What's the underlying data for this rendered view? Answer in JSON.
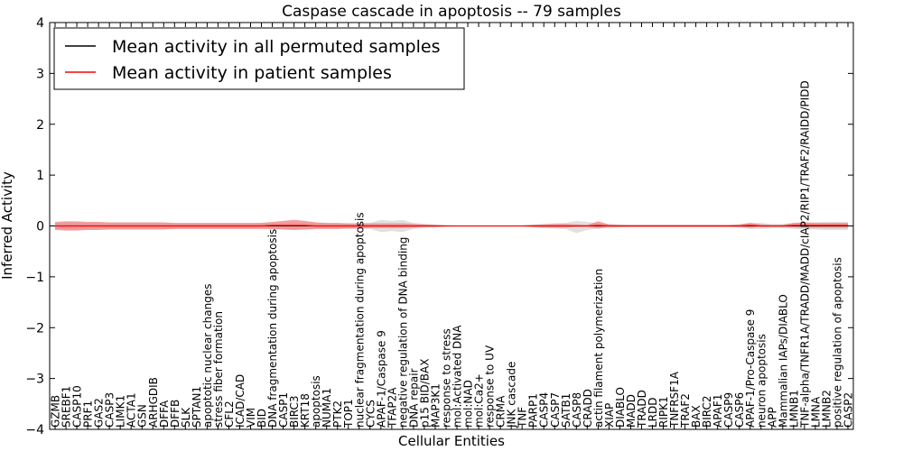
{
  "chart_data": {
    "type": "line",
    "title": "Caspase cascade in apoptosis -- 79 samples",
    "xlabel": "Cellular Entities",
    "ylabel": "Inferred Activity",
    "ylim": [
      -4,
      4
    ],
    "yticks": [
      -4,
      -3,
      -2,
      -1,
      0,
      1,
      2,
      3,
      4
    ],
    "ytick_labels": [
      "−4",
      "−3",
      "−2",
      "−1",
      "0",
      "1",
      "2",
      "3",
      "4"
    ],
    "grid": false,
    "legend_position": "top-left",
    "categories": [
      "GZMB",
      "SREBF1",
      "CASP10",
      "PRF1",
      "GAS2",
      "CASP3",
      "LIMK1",
      "ACTA1",
      "GSN",
      "ARHGDIB",
      "DFFA",
      "DFFB",
      "SLK",
      "SPTAN1",
      "apoptotic nuclear changes",
      "stress fiber formation",
      "CFL2",
      "ICAD/CAD",
      "VIM",
      "BID",
      "DNA fragmentation during apoptosis",
      "CASP1",
      "BIRC3",
      "KRT18",
      "apoptosis",
      "NUMA1",
      "PTK2",
      "TOP1",
      "nuclear fragmentation during apoptosis",
      "CYCS",
      "APAF-1/Caspase 9",
      "TFAP2A",
      "negative regulation of DNA binding",
      "DNA repair",
      "p15 BID/BAX",
      "MAP3K1",
      "response to stress",
      "mol:Activated DNA",
      "mol:NAD",
      "mol:Ca2+",
      "response to UV",
      "CRMA",
      "JNK cascade",
      "TNF",
      "PARP1",
      "CASP4",
      "CASP7",
      "SATB1",
      "CASP8",
      "CRADD",
      "actin filament polymerization",
      "XIAP",
      "DIABLO",
      "MADD",
      "TRADD",
      "LRDD",
      "RIPK1",
      "TNFRSF1A",
      "TRAF2",
      "BAX",
      "BIRC2",
      "APAF1",
      "CASP9",
      "CASP6",
      "APAF-1/Pro-Caspase 9",
      "neuron apoptosis",
      "APP",
      "Mammalian IAPs/DIABLO",
      "LMNB1",
      "TNF-alpha/TNFR1A/TRADD/MADD/cIAP2/RIP1/TRAF2/RAIDD/PIDD",
      "LMNA",
      "LMNB2",
      "positive regulation of apoptosis",
      "CASP2"
    ],
    "series": [
      {
        "name": "Mean activity in all permuted samples",
        "color": "#000000",
        "values": [
          0,
          0,
          0,
          0,
          0,
          0,
          0,
          0,
          0,
          0,
          0,
          0,
          0,
          0,
          0,
          0,
          0,
          0,
          0,
          0,
          0,
          0,
          0,
          0,
          0,
          0,
          0,
          0,
          0,
          0,
          0,
          0,
          0,
          0,
          0,
          0,
          0,
          0,
          0,
          0,
          0,
          0,
          0,
          0,
          0,
          0,
          0,
          0,
          0,
          0,
          0,
          0,
          0,
          0,
          0,
          0,
          0,
          0,
          0,
          0,
          0,
          0,
          0,
          0,
          0,
          0,
          0,
          0,
          0,
          0,
          0,
          0,
          0,
          0
        ],
        "band_upper": [
          0.05,
          0.06,
          0.06,
          0.06,
          0.05,
          0.05,
          0.05,
          0.05,
          0.05,
          0.05,
          0.05,
          0.05,
          0.05,
          0.05,
          0.05,
          0.05,
          0.05,
          0.05,
          0.05,
          0.05,
          0.06,
          0.06,
          0.07,
          0.06,
          0.05,
          0.05,
          0.05,
          0.05,
          0.05,
          0.06,
          0.12,
          0.1,
          0.12,
          0.06,
          0.04,
          0.03,
          0.02,
          0.01,
          0.01,
          0.01,
          0.01,
          0.01,
          0.01,
          0.01,
          0.03,
          0.04,
          0.05,
          0.06,
          0.1,
          0.08,
          0.05,
          0.04,
          0.03,
          0.02,
          0.02,
          0.02,
          0.02,
          0.02,
          0.02,
          0.02,
          0.02,
          0.02,
          0.02,
          0.03,
          0.06,
          0.06,
          0.04,
          0.04,
          0.06,
          0.07,
          0.07,
          0.08,
          0.08,
          0.08
        ],
        "band_lower": [
          -0.05,
          -0.06,
          -0.06,
          -0.06,
          -0.05,
          -0.05,
          -0.05,
          -0.05,
          -0.05,
          -0.05,
          -0.05,
          -0.05,
          -0.05,
          -0.05,
          -0.05,
          -0.05,
          -0.05,
          -0.05,
          -0.05,
          -0.05,
          -0.06,
          -0.06,
          -0.07,
          -0.06,
          -0.05,
          -0.05,
          -0.05,
          -0.05,
          -0.05,
          -0.06,
          -0.12,
          -0.1,
          -0.12,
          -0.06,
          -0.04,
          -0.03,
          -0.02,
          -0.01,
          -0.01,
          -0.01,
          -0.01,
          -0.01,
          -0.01,
          -0.01,
          -0.03,
          -0.04,
          -0.05,
          -0.06,
          -0.14,
          -0.08,
          -0.05,
          -0.04,
          -0.03,
          -0.02,
          -0.02,
          -0.02,
          -0.02,
          -0.02,
          -0.02,
          -0.02,
          -0.02,
          -0.02,
          -0.02,
          -0.03,
          -0.06,
          -0.06,
          -0.04,
          -0.04,
          -0.06,
          -0.07,
          -0.07,
          -0.08,
          -0.08,
          -0.08
        ]
      },
      {
        "name": "Mean activity in patient samples",
        "color": "#ff0000",
        "band_color": "#f08080",
        "values": [
          0.0,
          0.0,
          0.0,
          0.0,
          0.0,
          0.0,
          0.0,
          0.0,
          0.0,
          0.0,
          0.0,
          0.0,
          0.0,
          0.0,
          0.0,
          0.0,
          0.0,
          0.0,
          0.0,
          0.0,
          0.01,
          0.01,
          0.01,
          0.01,
          0.0,
          0.0,
          0.0,
          0.0,
          0.0,
          0.0,
          0.0,
          0.0,
          0.0,
          0.0,
          0.0,
          0.0,
          0.0,
          0.0,
          0.0,
          0.0,
          0.0,
          0.0,
          0.0,
          0.0,
          0.0,
          0.0,
          0.0,
          0.0,
          0.0,
          0.0,
          0.01,
          0.0,
          0.0,
          0.0,
          0.0,
          0.0,
          0.0,
          0.0,
          0.0,
          0.0,
          0.0,
          0.0,
          0.0,
          0.0,
          0.01,
          0.0,
          0.0,
          0.0,
          0.01,
          0.01,
          0.01,
          0.01,
          0.01,
          0.01
        ],
        "band_upper": [
          0.08,
          0.09,
          0.09,
          0.08,
          0.08,
          0.07,
          0.07,
          0.07,
          0.07,
          0.07,
          0.07,
          0.06,
          0.06,
          0.06,
          0.06,
          0.06,
          0.06,
          0.06,
          0.06,
          0.06,
          0.08,
          0.1,
          0.12,
          0.1,
          0.07,
          0.06,
          0.06,
          0.05,
          0.05,
          0.05,
          0.05,
          0.05,
          0.05,
          0.04,
          0.03,
          0.02,
          0.01,
          0.01,
          0.01,
          0.01,
          0.01,
          0.01,
          0.01,
          0.01,
          0.02,
          0.03,
          0.04,
          0.04,
          0.03,
          0.02,
          0.09,
          0.03,
          0.02,
          0.02,
          0.02,
          0.02,
          0.02,
          0.02,
          0.02,
          0.02,
          0.02,
          0.02,
          0.02,
          0.03,
          0.06,
          0.03,
          0.02,
          0.02,
          0.06,
          0.07,
          0.06,
          0.06,
          0.06,
          0.06
        ],
        "band_lower": [
          -0.08,
          -0.09,
          -0.09,
          -0.08,
          -0.08,
          -0.07,
          -0.07,
          -0.07,
          -0.07,
          -0.07,
          -0.07,
          -0.06,
          -0.06,
          -0.06,
          -0.06,
          -0.06,
          -0.06,
          -0.06,
          -0.06,
          -0.06,
          -0.06,
          -0.07,
          -0.08,
          -0.07,
          -0.06,
          -0.06,
          -0.06,
          -0.05,
          -0.05,
          -0.04,
          -0.04,
          -0.04,
          -0.04,
          -0.03,
          -0.02,
          -0.02,
          -0.01,
          -0.01,
          -0.01,
          -0.01,
          -0.01,
          -0.01,
          -0.01,
          -0.01,
          -0.02,
          -0.03,
          -0.03,
          -0.03,
          -0.02,
          -0.02,
          -0.05,
          -0.02,
          -0.02,
          -0.02,
          -0.02,
          -0.02,
          -0.02,
          -0.02,
          -0.02,
          -0.02,
          -0.02,
          -0.02,
          -0.02,
          -0.02,
          -0.04,
          -0.02,
          -0.02,
          -0.02,
          -0.03,
          -0.04,
          -0.04,
          -0.04,
          -0.04,
          -0.04
        ]
      }
    ]
  }
}
